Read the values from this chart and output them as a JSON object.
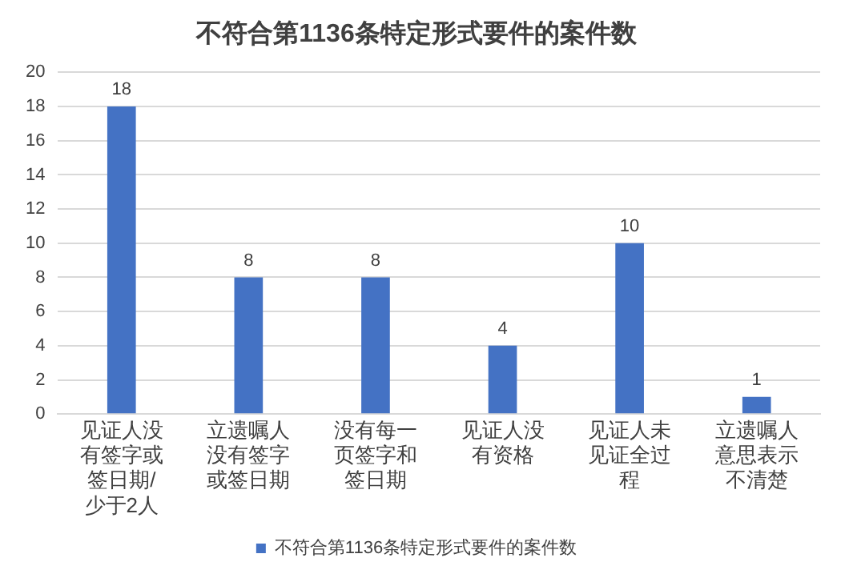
{
  "chart_data": {
    "type": "bar",
    "title": "不符合第1136条特定形式要件的案件数",
    "categories": [
      "见证人没有签字或签日期/少于2人",
      "立遗嘱人没有签字或签日期",
      "没有每一页签字和签日期",
      "见证人没有资格",
      "见证人未见证全过程",
      "立遗嘱人意思表示不清楚"
    ],
    "series": [
      {
        "name": "不符合第1136条特定形式要件的案件数",
        "color": "#4472c4",
        "values": [
          18,
          8,
          8,
          4,
          10,
          1
        ]
      }
    ],
    "ylim": [
      0,
      20
    ],
    "yticks": [
      0,
      2,
      4,
      6,
      8,
      10,
      12,
      14,
      16,
      18,
      20
    ],
    "grid": "y",
    "legend": "bottom",
    "data_labels": true
  }
}
